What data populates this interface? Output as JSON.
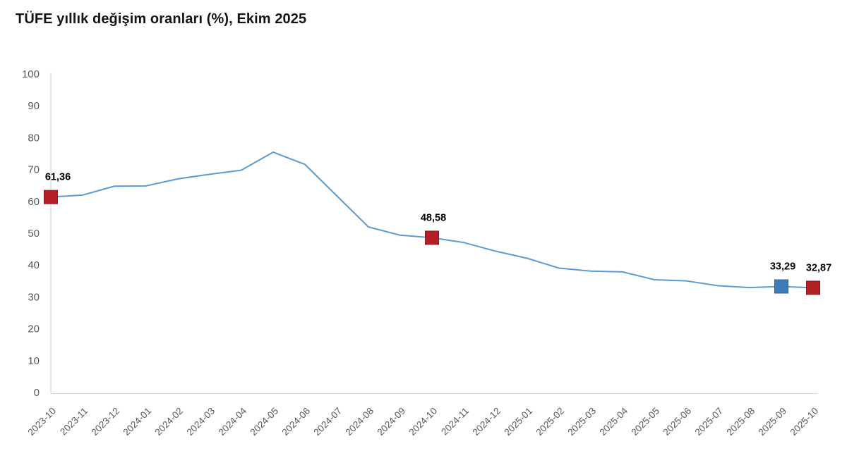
{
  "chart_data": {
    "type": "line",
    "title": "TÜFE yıllık değişim oranları (%), Ekim 2025",
    "categories": [
      "2023-10",
      "2023-11",
      "2023-12",
      "2024-01",
      "2024-02",
      "2024-03",
      "2024-04",
      "2024-05",
      "2024-06",
      "2024-07",
      "2024-08",
      "2024-09",
      "2024-10",
      "2024-11",
      "2024-12",
      "2025-01",
      "2025-02",
      "2025-03",
      "2025-04",
      "2025-05",
      "2025-06",
      "2025-07",
      "2025-08",
      "2025-09",
      "2025-10"
    ],
    "values": [
      61.36,
      61.98,
      64.77,
      64.86,
      67.07,
      68.5,
      69.8,
      75.45,
      71.6,
      61.78,
      51.97,
      49.38,
      48.58,
      47.09,
      44.38,
      42.12,
      39.05,
      38.1,
      37.86,
      35.41,
      35.05,
      33.52,
      32.95,
      33.29,
      32.87
    ],
    "xlabel": "",
    "ylabel": "",
    "ylim": [
      0,
      100
    ],
    "ytick_step": 10,
    "yticks": [
      0,
      10,
      20,
      30,
      40,
      50,
      60,
      70,
      80,
      90,
      100
    ],
    "grid": "off",
    "legend": "none",
    "annotated_points": [
      {
        "category": "2023-10",
        "value_label": "61,36",
        "marker": "red"
      },
      {
        "category": "2024-10",
        "value_label": "48,58",
        "marker": "red"
      },
      {
        "category": "2025-09",
        "value_label": "33,29",
        "marker": "blue"
      },
      {
        "category": "2025-10",
        "value_label": "32,87",
        "marker": "red"
      }
    ],
    "colors": {
      "line": "#5b9bd5",
      "marker_red": "#b21f24",
      "marker_red_border": "#8f191d",
      "marker_blue": "#3e7cb7",
      "marker_blue_border": "#2f6294",
      "axis": "#d9d9d9",
      "tick_text": "#595959",
      "data_label": "#000000",
      "title_text": "#141414"
    }
  }
}
